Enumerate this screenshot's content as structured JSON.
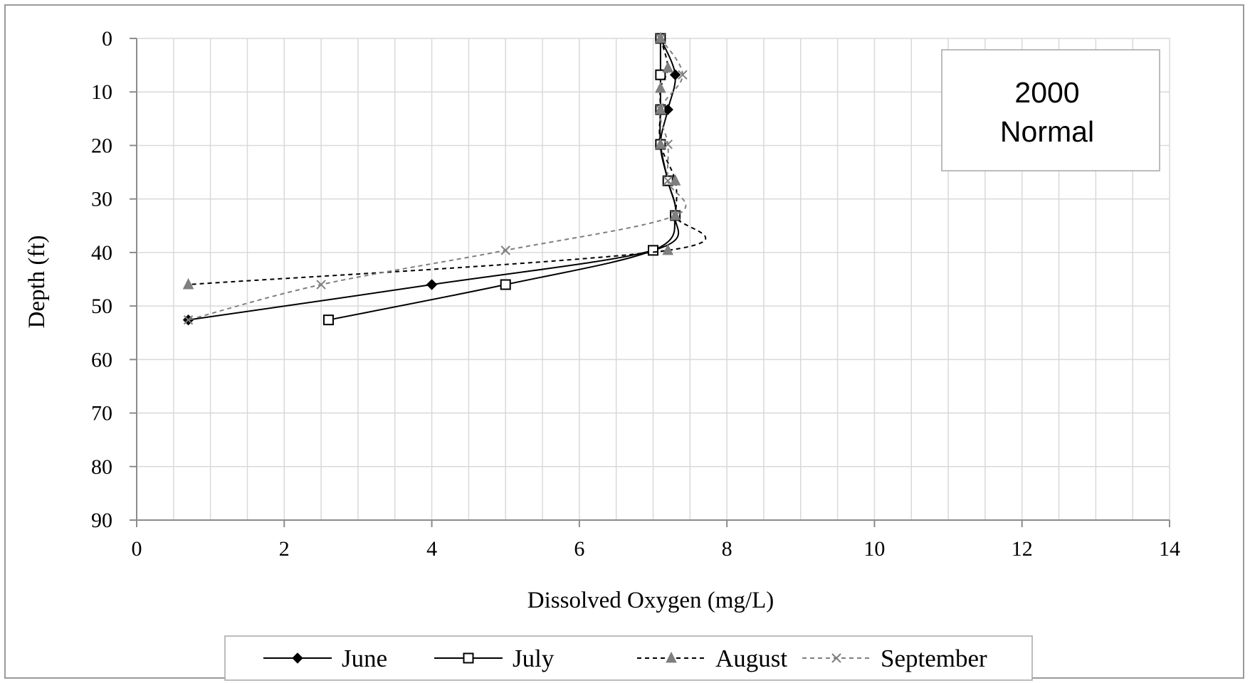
{
  "chart_data": {
    "type": "line",
    "xlabel": "Dissolved Oxygen (mg/L)",
    "ylabel": "Depth (ft)",
    "xlim": [
      0,
      14
    ],
    "ylim": [
      0,
      90
    ],
    "y_inverted": true,
    "x_ticks": [
      0,
      2,
      4,
      6,
      8,
      10,
      12,
      14
    ],
    "y_ticks": [
      0,
      10,
      20,
      30,
      40,
      50,
      60,
      70,
      80,
      90
    ],
    "grid": true,
    "legend_position": "bottom",
    "annotation": {
      "line1": "2000",
      "line2": "Normal"
    },
    "series": [
      {
        "name": "June",
        "marker": "diamond",
        "line_style": "solid",
        "color": "#000000",
        "points": [
          [
            7.1,
            0
          ],
          [
            7.3,
            6.8
          ],
          [
            7.2,
            13.3
          ],
          [
            7.1,
            19.8
          ],
          [
            7.2,
            26.6
          ],
          [
            7.3,
            33.1
          ],
          [
            7.0,
            39.6
          ],
          [
            4.0,
            46.0
          ],
          [
            0.7,
            52.6
          ]
        ]
      },
      {
        "name": "July",
        "marker": "square-open",
        "line_style": "solid",
        "color": "#000000",
        "points": [
          [
            7.1,
            0
          ],
          [
            7.1,
            6.8
          ],
          [
            7.1,
            13.3
          ],
          [
            7.1,
            19.8
          ],
          [
            7.2,
            26.6
          ],
          [
            7.3,
            33.1
          ],
          [
            7.0,
            39.6
          ],
          [
            5.0,
            46.0
          ],
          [
            2.6,
            52.6
          ]
        ]
      },
      {
        "name": "August",
        "marker": "triangle",
        "line_style": "dashed",
        "color": "#000000",
        "marker_color": "#7f7f7f",
        "points": [
          [
            7.1,
            0
          ],
          [
            7.2,
            5.5
          ],
          [
            7.1,
            9.3
          ],
          [
            7.1,
            13.3
          ],
          [
            7.1,
            19.8
          ],
          [
            7.3,
            26.6
          ],
          [
            7.3,
            33.1
          ],
          [
            7.2,
            39.6
          ],
          [
            0.7,
            46.0
          ]
        ]
      },
      {
        "name": "September",
        "marker": "x",
        "line_style": "dashed",
        "color": "#7f7f7f",
        "points": [
          [
            7.1,
            0
          ],
          [
            7.4,
            6.8
          ],
          [
            7.1,
            13.3
          ],
          [
            7.2,
            19.8
          ],
          [
            7.2,
            26.6
          ],
          [
            7.3,
            33.1
          ],
          [
            5.0,
            39.6
          ],
          [
            2.5,
            46.0
          ],
          [
            0.7,
            52.6
          ]
        ]
      }
    ]
  }
}
